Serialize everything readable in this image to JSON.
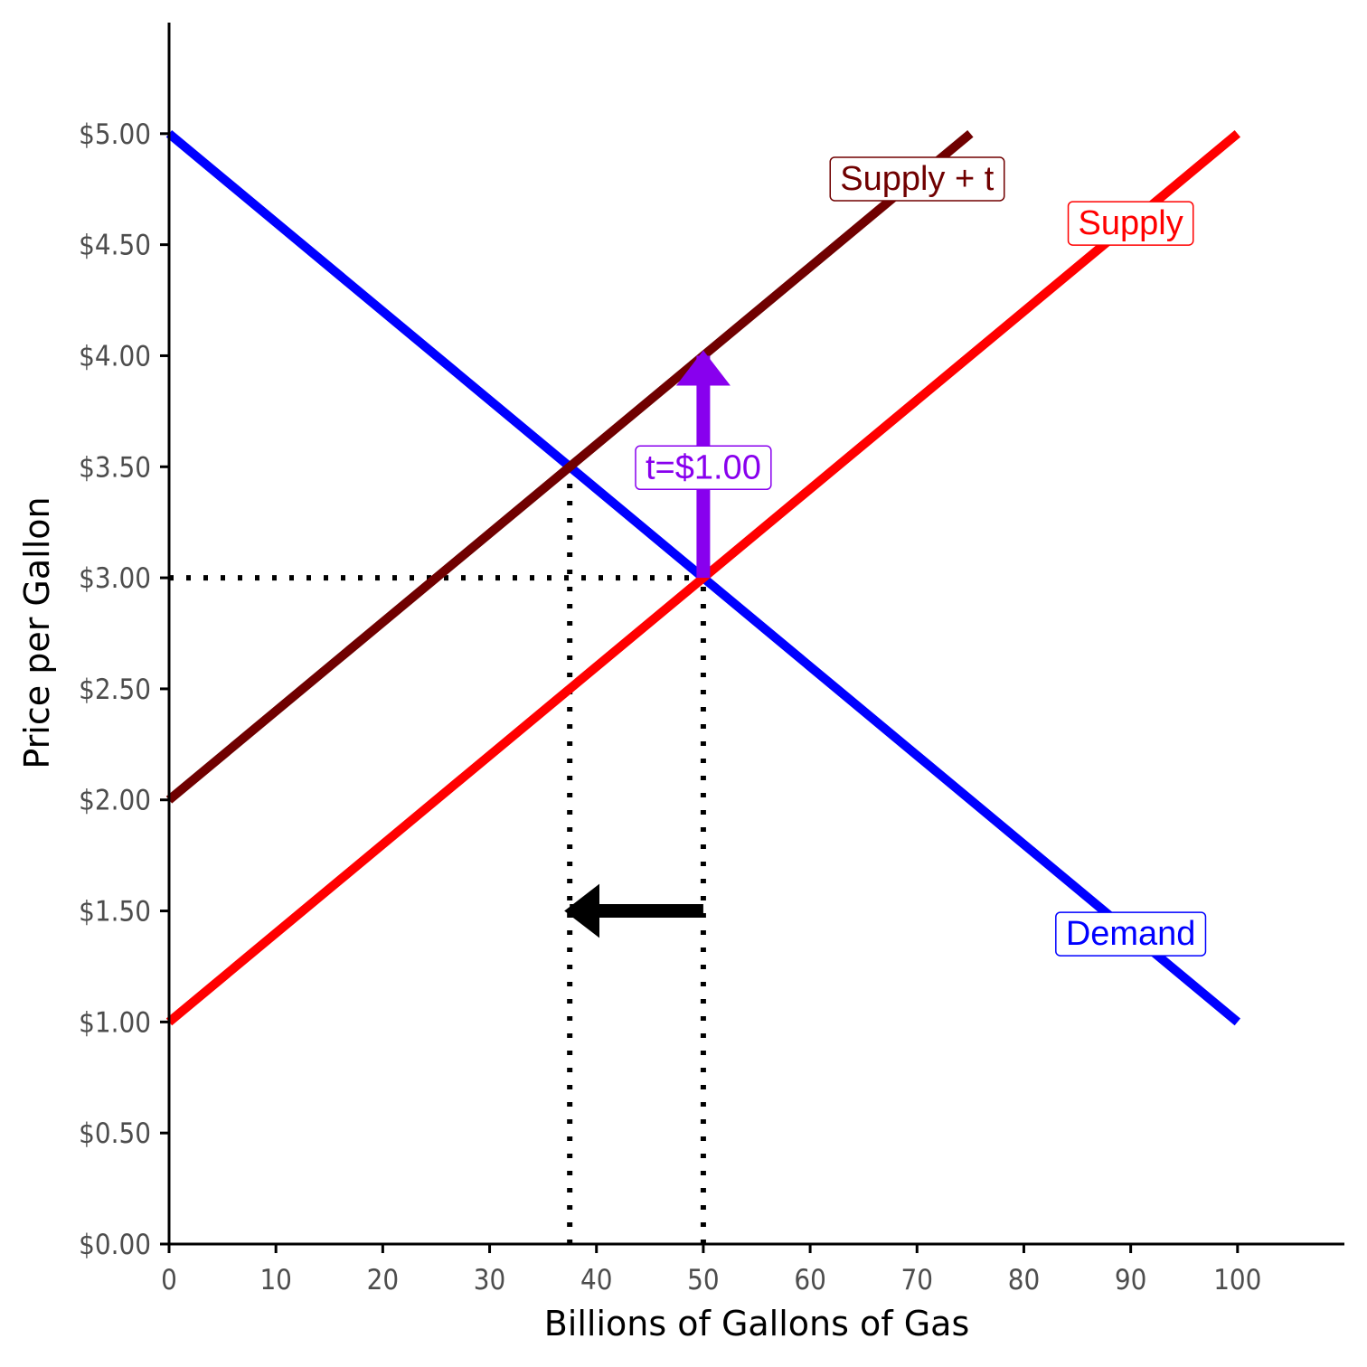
{
  "chart_data": {
    "type": "line",
    "title": "",
    "xlabel": "Billions of Gallons of Gas",
    "ylabel": "Price per Gallon",
    "xlim": [
      0,
      110
    ],
    "ylim": [
      0,
      5.5
    ],
    "xticks": [
      0,
      10,
      20,
      30,
      40,
      50,
      60,
      70,
      80,
      90,
      100
    ],
    "xtick_labels": [
      "0",
      "10",
      "20",
      "30",
      "40",
      "50",
      "60",
      "70",
      "80",
      "90",
      "100"
    ],
    "yticks": [
      0,
      0.5,
      1,
      1.5,
      2,
      2.5,
      3,
      3.5,
      4,
      4.5,
      5
    ],
    "ytick_labels": [
      "$0.00",
      "$0.50",
      "$1.00",
      "$1.50",
      "$2.00",
      "$2.50",
      "$3.00",
      "$3.50",
      "$4.00",
      "$4.50",
      "$5.00"
    ],
    "grid": false,
    "series": [
      {
        "name": "Demand",
        "color": "#0000ff",
        "x": [
          0,
          100
        ],
        "y": [
          5,
          1
        ]
      },
      {
        "name": "Supply",
        "color": "#ff0000",
        "x": [
          0,
          100
        ],
        "y": [
          1,
          5
        ]
      },
      {
        "name": "Supply + t",
        "color": "#700000",
        "x": [
          0,
          75
        ],
        "y": [
          2,
          5
        ]
      }
    ],
    "labels": [
      {
        "id": "supply-plus-t",
        "text": "Supply + t",
        "color": "#700000",
        "x": 70,
        "y": 4.8
      },
      {
        "id": "supply",
        "text": "Supply",
        "color": "#ff0000",
        "x": 90,
        "y": 4.6
      },
      {
        "id": "demand",
        "text": "Demand",
        "color": "#0000ff",
        "x": 90,
        "y": 1.4
      },
      {
        "id": "tax",
        "text": "t=$1.00",
        "color": "#8800ee",
        "x": 50,
        "y": 3.5
      }
    ],
    "reference_lines": [
      {
        "x": [
          0,
          50
        ],
        "y": [
          3,
          3
        ]
      },
      {
        "x": [
          50,
          50
        ],
        "y": [
          0,
          3
        ]
      },
      {
        "x": [
          37.5,
          37.5
        ],
        "y": [
          0,
          3.5
        ]
      }
    ],
    "arrows": [
      {
        "id": "tax-arrow",
        "color": "#8800ee",
        "x": [
          50,
          50
        ],
        "y": [
          3,
          4
        ]
      },
      {
        "id": "quantity-arrow",
        "color": "#000000",
        "x": [
          50,
          37.5
        ],
        "y": [
          1.5,
          1.5
        ]
      }
    ]
  }
}
